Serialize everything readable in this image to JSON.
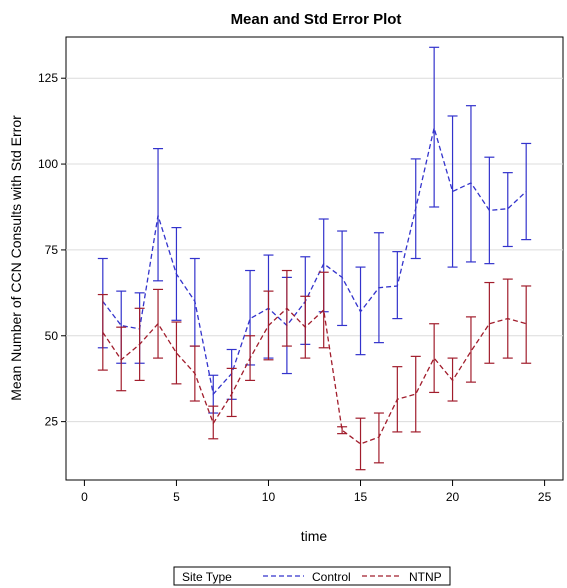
{
  "chart_data": {
    "type": "line",
    "title": "Mean and Std Error Plot",
    "xlabel": "time",
    "ylabel": "Mean Number of CCN Consults with Std Error",
    "xlim": [
      -1,
      26
    ],
    "ylim": [
      8,
      137
    ],
    "x_ticks": [
      0,
      5,
      10,
      15,
      20,
      25
    ],
    "x_tick_labels": [
      "0",
      "5",
      "10",
      "15",
      "20",
      "25"
    ],
    "y_ticks": [
      25,
      50,
      75,
      100,
      125
    ],
    "y_tick_labels": [
      "25",
      "50",
      "75",
      "100",
      "125"
    ],
    "grid": "horizontal",
    "legend": {
      "title": "Site Type",
      "placement": "bottom"
    },
    "series": [
      {
        "name": "Control",
        "color": "#3333cc",
        "dash": "dashed",
        "x": [
          1,
          2,
          3,
          4,
          5,
          6,
          7,
          8,
          9,
          10,
          11,
          12,
          13,
          14,
          15,
          16,
          17,
          18,
          19,
          20,
          21,
          22,
          23,
          24
        ],
        "values": [
          60,
          53,
          52,
          85,
          68,
          60,
          33,
          39,
          55,
          58,
          53,
          60,
          71,
          67,
          57,
          64,
          64.5,
          87,
          110.5,
          92,
          94.5,
          86.5,
          87,
          92
        ],
        "upper": [
          72.5,
          63,
          62.5,
          104.5,
          81.5,
          72.5,
          38.5,
          46,
          69,
          73.5,
          67,
          73,
          84,
          80.5,
          70,
          80,
          74.5,
          101.5,
          134,
          114,
          117,
          102,
          97.5,
          106
        ],
        "lower": [
          46.5,
          42,
          42,
          66,
          54.5,
          47,
          27.5,
          31.5,
          41.5,
          43.5,
          39,
          47.5,
          57,
          53,
          44.5,
          48,
          55,
          72.5,
          87.5,
          70,
          71.5,
          71,
          76,
          78
        ]
      },
      {
        "name": "NTNP",
        "color": "#a11d2c",
        "dash": "dashed",
        "x": [
          1,
          2,
          3,
          4,
          5,
          6,
          7,
          8,
          9,
          10,
          11,
          12,
          13,
          14,
          15,
          16,
          17,
          18,
          19,
          20,
          21,
          22,
          23,
          24
        ],
        "values": [
          51,
          43,
          47.5,
          53.5,
          45,
          39,
          24.5,
          33,
          43.5,
          53,
          58,
          52.5,
          57.5,
          22.5,
          18.5,
          20.5,
          31.5,
          33,
          43.5,
          37,
          45.5,
          53.5,
          55,
          53.5
        ],
        "upper": [
          62,
          52.5,
          58,
          63.5,
          54,
          47,
          29.5,
          40.5,
          50,
          63,
          69,
          61.5,
          68.5,
          23.5,
          26,
          27.5,
          41,
          44,
          53.5,
          43.5,
          55.5,
          65.5,
          66.5,
          64.5
        ],
        "lower": [
          40,
          34,
          37,
          43.5,
          36,
          31,
          20,
          26.5,
          37,
          43,
          47,
          43.5,
          46.5,
          21.5,
          11,
          13,
          22,
          22,
          33.5,
          31,
          36.5,
          42,
          43.5,
          42
        ]
      }
    ]
  }
}
